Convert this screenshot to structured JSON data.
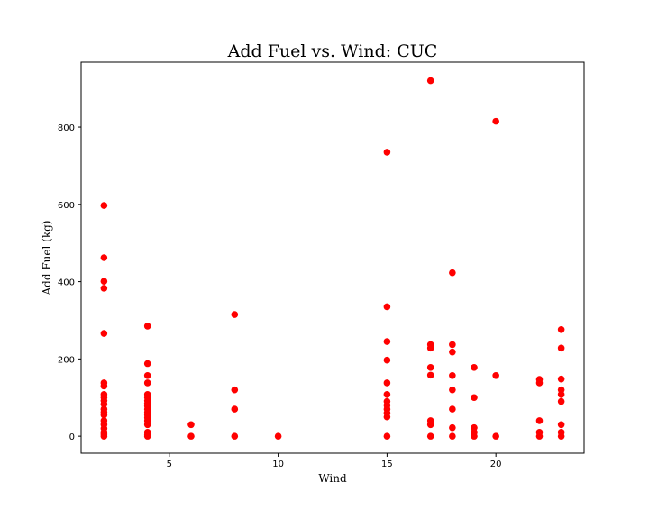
{
  "chart_data": {
    "type": "scatter",
    "title": "Add Fuel vs. Wind: CUC",
    "x_label": "Wind",
    "y_label": "Add Fuel (kg)",
    "color": "#ff0000",
    "x": [
      2,
      2,
      2,
      2,
      2,
      2,
      2,
      2,
      2,
      2,
      2,
      2,
      2,
      2,
      2,
      2,
      2,
      2,
      2,
      2,
      4,
      4,
      4,
      4,
      4,
      4,
      4,
      4,
      4,
      4,
      4,
      4,
      4,
      4,
      4,
      4,
      4,
      4,
      6,
      6,
      8,
      8,
      8,
      8,
      10,
      15,
      15,
      15,
      15,
      15,
      15,
      15,
      15,
      15,
      15,
      15,
      15,
      17,
      17,
      17,
      17,
      17,
      17,
      17,
      17,
      18,
      18,
      18,
      18,
      18,
      18,
      18,
      18,
      19,
      19,
      19,
      19,
      19,
      20,
      20,
      20,
      22,
      22,
      22,
      22,
      22,
      23,
      23,
      23,
      23,
      23,
      23,
      23,
      23,
      23
    ],
    "y": [
      597,
      462,
      401,
      383,
      266,
      138,
      130,
      108,
      100,
      92,
      83,
      70,
      62,
      55,
      40,
      30,
      20,
      10,
      5,
      0,
      285,
      188,
      157,
      138,
      108,
      100,
      92,
      85,
      78,
      70,
      62,
      55,
      48,
      40,
      30,
      10,
      3,
      0,
      30,
      0,
      315,
      120,
      70,
      0,
      0,
      735,
      335,
      245,
      197,
      138,
      108,
      90,
      80,
      70,
      60,
      50,
      0,
      920,
      237,
      228,
      178,
      158,
      40,
      30,
      0,
      423,
      237,
      218,
      157,
      120,
      70,
      22,
      0,
      178,
      100,
      22,
      10,
      0,
      815,
      157,
      0,
      147,
      138,
      40,
      10,
      0,
      276,
      228,
      148,
      120,
      108,
      90,
      30,
      10,
      0
    ],
    "xlim": [
      0.95,
      24.05
    ],
    "ylim": [
      -44,
      968
    ],
    "xticks": [
      5,
      10,
      15,
      20
    ],
    "yticks": [
      0,
      200,
      400,
      600,
      800
    ]
  }
}
